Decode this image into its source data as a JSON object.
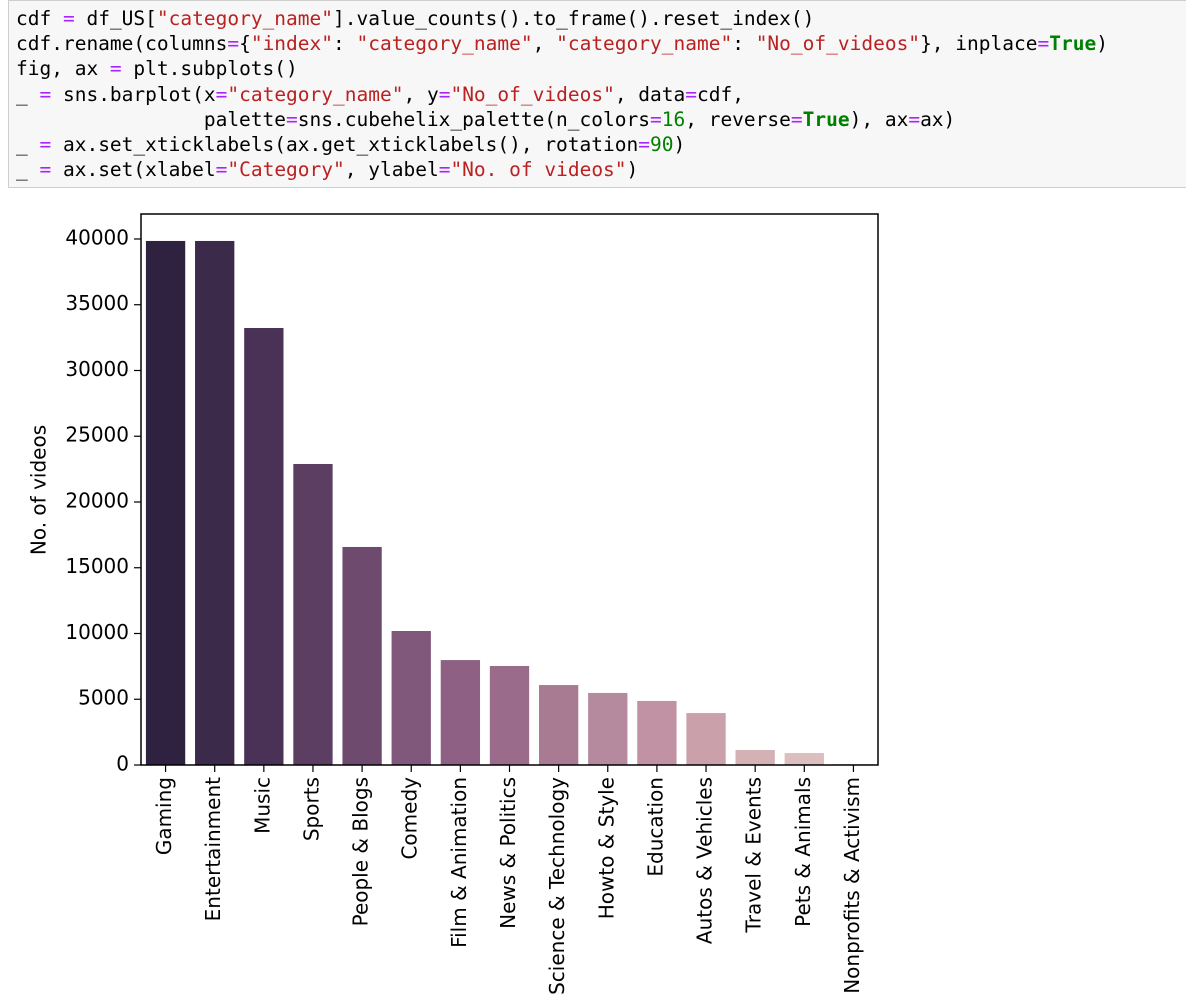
{
  "code": {
    "lines": [
      [
        {
          "text": "cdf ",
          "color": "#000000"
        },
        {
          "text": "=",
          "color": "#aa22ff"
        },
        {
          "text": " df_US[",
          "color": "#000000"
        },
        {
          "text": "\"category_name\"",
          "color": "#ba2121"
        },
        {
          "text": "].value_counts().to_frame().reset_index()",
          "color": "#000000"
        }
      ],
      [
        {
          "text": "cdf.rename(columns",
          "color": "#000000"
        },
        {
          "text": "=",
          "color": "#aa22ff"
        },
        {
          "text": "{",
          "color": "#000000"
        },
        {
          "text": "\"index\"",
          "color": "#ba2121"
        },
        {
          "text": ": ",
          "color": "#000000"
        },
        {
          "text": "\"category_name\"",
          "color": "#ba2121"
        },
        {
          "text": ", ",
          "color": "#000000"
        },
        {
          "text": "\"category_name\"",
          "color": "#ba2121"
        },
        {
          "text": ": ",
          "color": "#000000"
        },
        {
          "text": "\"No_of_videos\"",
          "color": "#ba2121"
        },
        {
          "text": "}, inplace",
          "color": "#000000"
        },
        {
          "text": "=",
          "color": "#aa22ff"
        },
        {
          "text": "True",
          "color": "#008000",
          "bold": true
        },
        {
          "text": ")",
          "color": "#000000"
        }
      ],
      [
        {
          "text": "fig, ax ",
          "color": "#000000"
        },
        {
          "text": "=",
          "color": "#aa22ff"
        },
        {
          "text": " plt.subplots()",
          "color": "#000000"
        }
      ],
      [
        {
          "text": "_ ",
          "color": "#000000"
        },
        {
          "text": "=",
          "color": "#aa22ff"
        },
        {
          "text": " sns.barplot(x",
          "color": "#000000"
        },
        {
          "text": "=",
          "color": "#aa22ff"
        },
        {
          "text": "\"category_name\"",
          "color": "#ba2121"
        },
        {
          "text": ", y",
          "color": "#000000"
        },
        {
          "text": "=",
          "color": "#aa22ff"
        },
        {
          "text": "\"No_of_videos\"",
          "color": "#ba2121"
        },
        {
          "text": ", data",
          "color": "#000000"
        },
        {
          "text": "=",
          "color": "#aa22ff"
        },
        {
          "text": "cdf,",
          "color": "#000000"
        }
      ],
      [
        {
          "text": "                palette",
          "color": "#000000"
        },
        {
          "text": "=",
          "color": "#aa22ff"
        },
        {
          "text": "sns.cubehelix_palette(n_colors",
          "color": "#000000"
        },
        {
          "text": "=",
          "color": "#aa22ff"
        },
        {
          "text": "16",
          "color": "#008000"
        },
        {
          "text": ", reverse",
          "color": "#000000"
        },
        {
          "text": "=",
          "color": "#aa22ff"
        },
        {
          "text": "True",
          "color": "#008000",
          "bold": true
        },
        {
          "text": "), ax",
          "color": "#000000"
        },
        {
          "text": "=",
          "color": "#aa22ff"
        },
        {
          "text": "ax)",
          "color": "#000000"
        }
      ],
      [
        {
          "text": "_ ",
          "color": "#000000"
        },
        {
          "text": "=",
          "color": "#aa22ff"
        },
        {
          "text": " ax.set_xticklabels(ax.get_xticklabels(), rotation",
          "color": "#000000"
        },
        {
          "text": "=",
          "color": "#aa22ff"
        },
        {
          "text": "90",
          "color": "#008000"
        },
        {
          "text": ")",
          "color": "#000000"
        }
      ],
      [
        {
          "text": "_ ",
          "color": "#000000"
        },
        {
          "text": "=",
          "color": "#aa22ff"
        },
        {
          "text": " ax.set(xlabel",
          "color": "#000000"
        },
        {
          "text": "=",
          "color": "#aa22ff"
        },
        {
          "text": "\"Category\"",
          "color": "#ba2121"
        },
        {
          "text": ", ylabel",
          "color": "#000000"
        },
        {
          "text": "=",
          "color": "#aa22ff"
        },
        {
          "text": "\"No. of videos\"",
          "color": "#ba2121"
        },
        {
          "text": ")",
          "color": "#000000"
        }
      ]
    ]
  },
  "chart_data": {
    "type": "bar",
    "y_label": "No. of videos",
    "categories": [
      "Gaming",
      "Entertainment",
      "Music",
      "Sports",
      "People & Blogs",
      "Comedy",
      "Film & Animation",
      "News & Politics",
      "Science & Technology",
      "Howto & Style",
      "Education",
      "Autos & Vehicles",
      "Travel & Events",
      "Pets & Animals",
      "Nonprofits & Activism"
    ],
    "values": [
      39850,
      39850,
      33230,
      22890,
      16580,
      10190,
      7980,
      7530,
      6080,
      5480,
      4870,
      3950,
      1140,
      910,
      60
    ],
    "colors": [
      "#2e2240",
      "#3b2a4a",
      "#4a3256",
      "#5c3e62",
      "#6f4a6f",
      "#80587c",
      "#8e6184",
      "#9b6b8c",
      "#a97b93",
      "#b58a9e",
      "#c192a3",
      "#caa1ab",
      "#d4b1b5",
      "#dcbebe",
      "#e5cccb"
    ],
    "ylim": [
      0,
      41900
    ],
    "yticks": [
      0,
      5000,
      10000,
      15000,
      20000,
      25000,
      30000,
      35000,
      40000
    ]
  }
}
